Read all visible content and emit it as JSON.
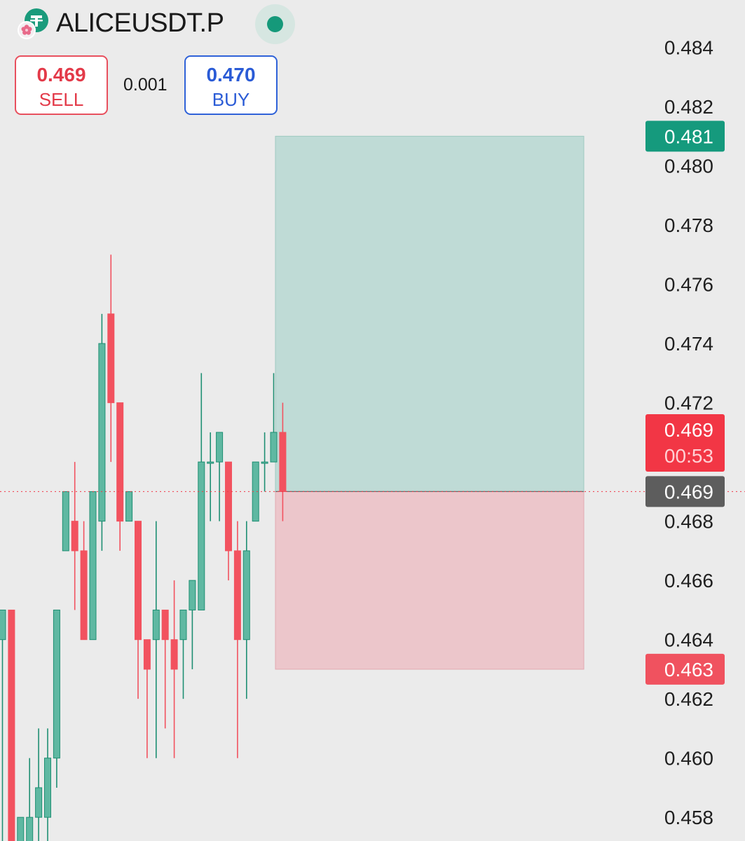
{
  "header": {
    "symbol": "ALICEUSDT.P",
    "icon": "tether-coin-icon",
    "badge_icon": "flower-icon",
    "status_icon": "market-open-dot-icon"
  },
  "trade": {
    "sell_price": "0.469",
    "sell_label": "SELL",
    "spread": "0.001",
    "buy_price": "0.470",
    "buy_label": "BUY"
  },
  "colors": {
    "up": "#5fb8a2",
    "up_stroke": "#1f8f73",
    "down": "#f2525f",
    "profit_zone": "#bfdbd6",
    "loss_zone": "#ecc6cb",
    "target_tag": "#159a7d",
    "last_tag": "#f23645",
    "entry_tag": "#5d5d5d",
    "stop_tag": "#f0525f"
  },
  "chart_data": {
    "type": "candlestick",
    "ylim": [
      0.4572,
      0.4856
    ],
    "y_ticks": [
      "0.484",
      "0.482",
      "0.480",
      "0.478",
      "0.476",
      "0.474",
      "0.472",
      "0.468",
      "0.466",
      "0.464",
      "0.462",
      "0.460",
      "0.458"
    ],
    "y_tick_values": [
      0.484,
      0.482,
      0.48,
      0.478,
      0.476,
      0.474,
      0.472,
      0.468,
      0.466,
      0.464,
      0.462,
      0.46,
      0.458
    ],
    "candles": [
      {
        "o": 0.464,
        "h": 0.465,
        "l": 0.457,
        "c": 0.465
      },
      {
        "o": 0.465,
        "h": 0.465,
        "l": 0.457,
        "c": 0.457
      },
      {
        "o": 0.457,
        "h": 0.458,
        "l": 0.457,
        "c": 0.458
      },
      {
        "o": 0.457,
        "h": 0.46,
        "l": 0.457,
        "c": 0.458
      },
      {
        "o": 0.458,
        "h": 0.461,
        "l": 0.457,
        "c": 0.459
      },
      {
        "o": 0.458,
        "h": 0.461,
        "l": 0.457,
        "c": 0.46
      },
      {
        "o": 0.46,
        "h": 0.465,
        "l": 0.459,
        "c": 0.465
      },
      {
        "o": 0.467,
        "h": 0.469,
        "l": 0.467,
        "c": 0.469
      },
      {
        "o": 0.468,
        "h": 0.47,
        "l": 0.465,
        "c": 0.467
      },
      {
        "o": 0.467,
        "h": 0.468,
        "l": 0.464,
        "c": 0.464
      },
      {
        "o": 0.464,
        "h": 0.469,
        "l": 0.464,
        "c": 0.469
      },
      {
        "o": 0.468,
        "h": 0.475,
        "l": 0.467,
        "c": 0.474
      },
      {
        "o": 0.475,
        "h": 0.477,
        "l": 0.47,
        "c": 0.472
      },
      {
        "o": 0.472,
        "h": 0.472,
        "l": 0.467,
        "c": 0.468
      },
      {
        "o": 0.468,
        "h": 0.469,
        "l": 0.468,
        "c": 0.469
      },
      {
        "o": 0.468,
        "h": 0.468,
        "l": 0.462,
        "c": 0.464
      },
      {
        "o": 0.464,
        "h": 0.464,
        "l": 0.46,
        "c": 0.463
      },
      {
        "o": 0.464,
        "h": 0.468,
        "l": 0.46,
        "c": 0.465
      },
      {
        "o": 0.465,
        "h": 0.465,
        "l": 0.461,
        "c": 0.464
      },
      {
        "o": 0.464,
        "h": 0.466,
        "l": 0.46,
        "c": 0.463
      },
      {
        "o": 0.464,
        "h": 0.465,
        "l": 0.462,
        "c": 0.465
      },
      {
        "o": 0.465,
        "h": 0.466,
        "l": 0.463,
        "c": 0.466
      },
      {
        "o": 0.465,
        "h": 0.473,
        "l": 0.465,
        "c": 0.47
      },
      {
        "o": 0.47,
        "h": 0.471,
        "l": 0.468,
        "c": 0.47
      },
      {
        "o": 0.47,
        "h": 0.471,
        "l": 0.468,
        "c": 0.471
      },
      {
        "o": 0.47,
        "h": 0.47,
        "l": 0.466,
        "c": 0.467
      },
      {
        "o": 0.467,
        "h": 0.468,
        "l": 0.46,
        "c": 0.464
      },
      {
        "o": 0.464,
        "h": 0.468,
        "l": 0.462,
        "c": 0.467
      },
      {
        "o": 0.468,
        "h": 0.47,
        "l": 0.468,
        "c": 0.47
      },
      {
        "o": 0.47,
        "h": 0.471,
        "l": 0.469,
        "c": 0.47
      },
      {
        "o": 0.47,
        "h": 0.473,
        "l": 0.47,
        "c": 0.471
      },
      {
        "o": 0.471,
        "h": 0.472,
        "l": 0.468,
        "c": 0.469
      }
    ],
    "position": {
      "entry": 0.469,
      "target": 0.481,
      "stop": 0.463
    },
    "price_tags": {
      "target": "0.481",
      "last_price": "0.469",
      "countdown": "00:53",
      "entry": "0.469",
      "stop": "0.463"
    }
  }
}
